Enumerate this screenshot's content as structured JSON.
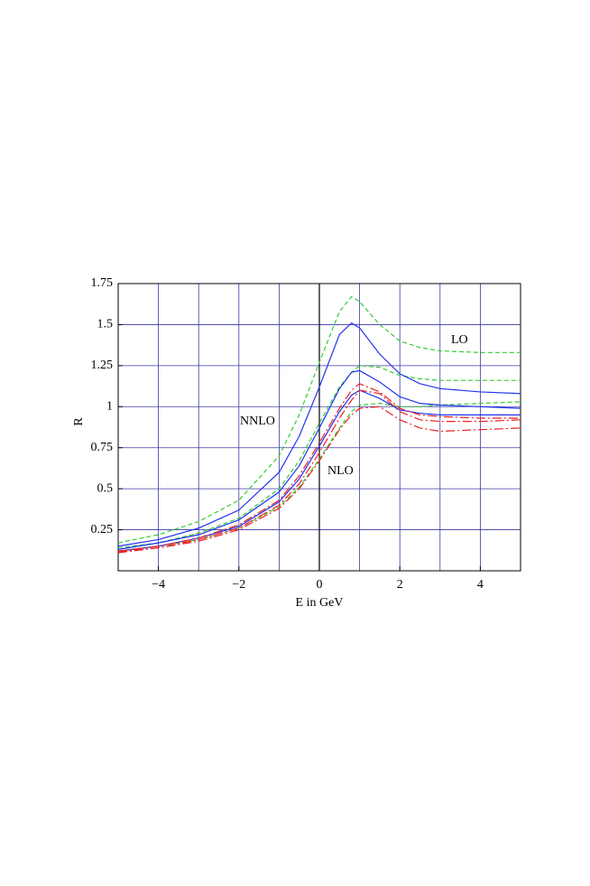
{
  "chart_data": {
    "type": "line",
    "xlabel": "E in GeV",
    "ylabel": "R",
    "annotations": [
      "LO",
      "NLO",
      "NNLO"
    ],
    "x": [
      -5,
      -4,
      -3,
      -2,
      -1,
      -0.5,
      0,
      0.5,
      0.8,
      1,
      1.5,
      2,
      2.5,
      3,
      4,
      5
    ],
    "series": [
      {
        "color": "#33cc33",
        "dash": "dashed",
        "values": [
          0.17,
          0.22,
          0.3,
          0.43,
          0.7,
          0.95,
          1.27,
          1.58,
          1.67,
          1.64,
          1.5,
          1.4,
          1.36,
          1.34,
          1.33,
          1.33
        ]
      },
      {
        "color": "#33cc33",
        "dash": "dashed",
        "values": [
          0.14,
          0.17,
          0.23,
          0.32,
          0.5,
          0.67,
          0.9,
          1.12,
          1.21,
          1.25,
          1.24,
          1.19,
          1.17,
          1.16,
          1.16,
          1.16
        ]
      },
      {
        "color": "#33cc33",
        "dash": "dashed",
        "values": [
          0.12,
          0.15,
          0.19,
          0.26,
          0.39,
          0.51,
          0.68,
          0.87,
          0.97,
          1.01,
          1.02,
          1.0,
          1.0,
          1.01,
          1.02,
          1.03
        ]
      },
      {
        "color": "#2233ee",
        "dash": "solid",
        "values": [
          0.15,
          0.19,
          0.26,
          0.37,
          0.6,
          0.82,
          1.12,
          1.44,
          1.51,
          1.48,
          1.32,
          1.2,
          1.14,
          1.11,
          1.09,
          1.08
        ]
      },
      {
        "color": "#2233ee",
        "dash": "solid",
        "values": [
          0.13,
          0.17,
          0.22,
          0.31,
          0.48,
          0.64,
          0.87,
          1.11,
          1.21,
          1.22,
          1.15,
          1.06,
          1.02,
          1.01,
          1.0,
          0.99
        ]
      },
      {
        "color": "#2233ee",
        "dash": "solid",
        "values": [
          0.12,
          0.15,
          0.2,
          0.27,
          0.42,
          0.56,
          0.76,
          0.97,
          1.07,
          1.1,
          1.05,
          0.98,
          0.96,
          0.95,
          0.95,
          0.95
        ]
      },
      {
        "color": "#ee2222",
        "dash": "dashdot",
        "values": [
          0.12,
          0.15,
          0.2,
          0.28,
          0.43,
          0.58,
          0.78,
          0.99,
          1.1,
          1.14,
          1.09,
          0.99,
          0.95,
          0.94,
          0.93,
          0.93
        ]
      },
      {
        "color": "#ee2222",
        "dash": "dashdot",
        "values": [
          0.115,
          0.14,
          0.19,
          0.26,
          0.4,
          0.53,
          0.72,
          0.93,
          1.04,
          1.1,
          1.08,
          0.97,
          0.92,
          0.91,
          0.91,
          0.92
        ]
      },
      {
        "color": "#ee2222",
        "dash": "dashdot",
        "values": [
          0.11,
          0.14,
          0.18,
          0.25,
          0.38,
          0.5,
          0.67,
          0.86,
          0.95,
          0.99,
          1.0,
          0.92,
          0.87,
          0.85,
          0.86,
          0.87
        ]
      }
    ],
    "xlim": [
      -5,
      5
    ],
    "ylim": [
      0,
      1.75
    ],
    "xticks": [
      -4,
      -2,
      0,
      2,
      4
    ],
    "xgrid": [
      -4,
      -3,
      -2,
      -1,
      0,
      1,
      2,
      3,
      4
    ],
    "yticks": [
      0.25,
      0.5,
      0.75,
      1,
      1.25,
      1.5,
      1.75
    ],
    "grid": true
  }
}
